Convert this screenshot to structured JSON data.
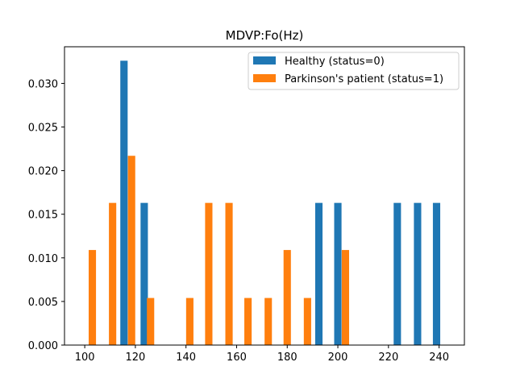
{
  "chart_data": {
    "type": "bar",
    "title": "MDVP:Fo(Hz)",
    "xlabel": "",
    "ylabel": "",
    "xlim": [
      92,
      250
    ],
    "ylim": [
      0,
      0.0342
    ],
    "x_ticks": [
      "100",
      "120",
      "140",
      "160",
      "180",
      "200",
      "220",
      "240"
    ],
    "y_ticks": [
      "0.000",
      "0.005",
      "0.010",
      "0.015",
      "0.020",
      "0.025",
      "0.030"
    ],
    "bar_width": 2.9,
    "legend_position": "upper right",
    "grid": false,
    "series": [
      {
        "name": "Healthy (status=0)",
        "color": "#1f77b4",
        "x": [
          115.5,
          123.5,
          192.5,
          200.0,
          223.5,
          231.5,
          239.0
        ],
        "values": [
          0.0326,
          0.0163,
          0.0163,
          0.0163,
          0.0163,
          0.0163,
          0.0163
        ]
      },
      {
        "name": "Parkinson's patient (status=1)",
        "color": "#ff7f0e",
        "x": [
          103.0,
          111.0,
          118.5,
          126.0,
          141.5,
          149.0,
          157.0,
          164.5,
          172.5,
          180.0,
          188.0,
          203.0
        ],
        "values": [
          0.0109,
          0.0163,
          0.0217,
          0.0054,
          0.0054,
          0.0163,
          0.0163,
          0.0054,
          0.0054,
          0.0109,
          0.0054,
          0.0109
        ]
      }
    ]
  }
}
